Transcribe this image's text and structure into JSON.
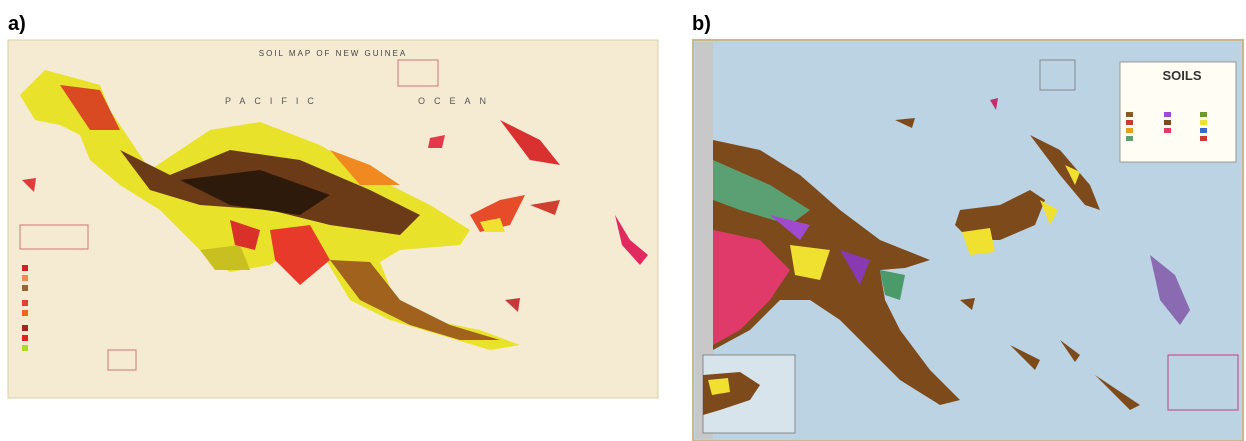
{
  "panels": [
    {
      "label": "a)",
      "title": "SOIL MAP OF NEW GUINEA",
      "ocean_words": [
        "PACIFIC",
        "OCEAN"
      ]
    },
    {
      "label": "b)",
      "legend_title": "SOILS"
    }
  ]
}
